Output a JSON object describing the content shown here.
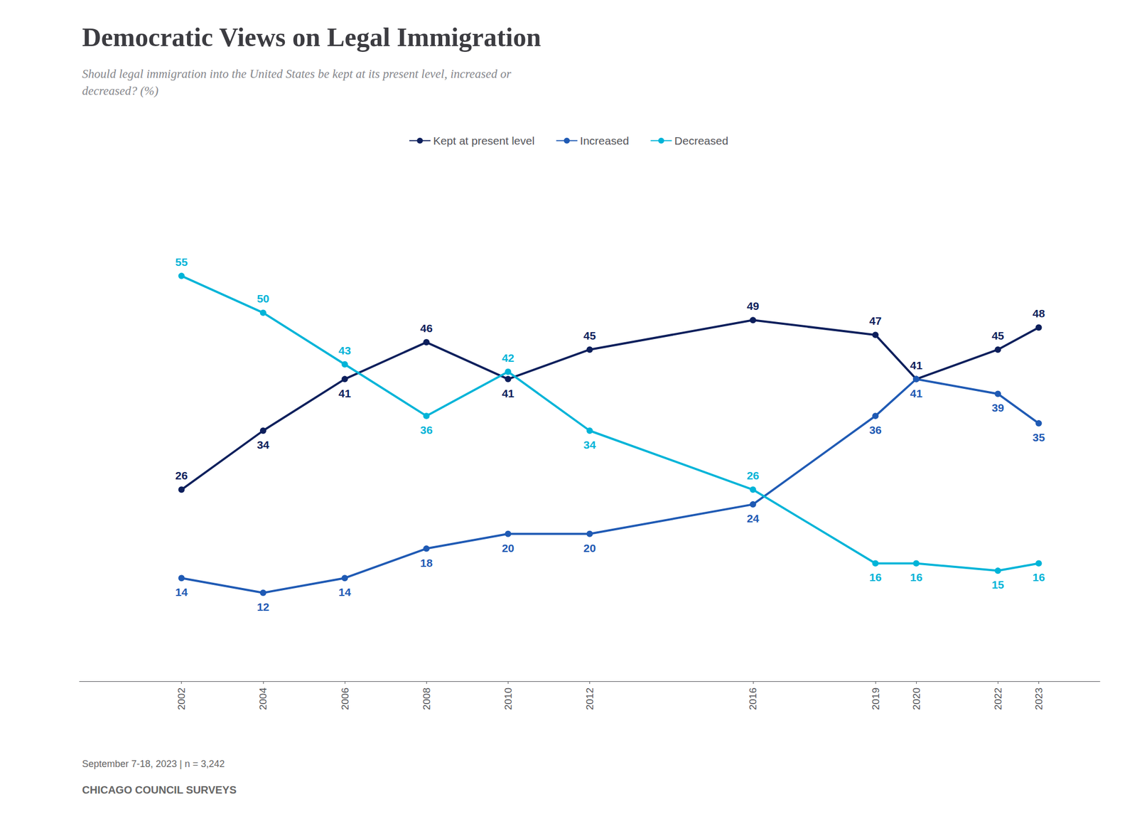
{
  "chart_data": {
    "type": "line",
    "title": "Democratic Views on Legal Immigration",
    "subtitle": "Should legal immigration into the United States be kept at its present level, increased or\ndecreased? (%)",
    "annotations": [
      "September 7-18, 2023 | n = 3,242",
      "CHICAGO COUNCIL SURVEYS"
    ],
    "x": [
      2002,
      2004,
      2006,
      2008,
      2010,
      2012,
      2016,
      2019,
      2020,
      2022,
      2023
    ],
    "series": [
      {
        "name": "Kept at present level",
        "color": "#0d1f5c",
        "values": [
          26,
          34,
          41,
          46,
          41,
          45,
          49,
          47,
          41,
          45,
          48
        ]
      },
      {
        "name": "Increased",
        "color": "#1f5ab4",
        "values": [
          14,
          12,
          14,
          18,
          20,
          20,
          24,
          36,
          41,
          39,
          35
        ]
      },
      {
        "name": "Decreased",
        "color": "#00b4d8",
        "values": [
          55,
          50,
          43,
          36,
          42,
          34,
          26,
          16,
          16,
          15,
          16
        ]
      }
    ],
    "xlim": [
      1999.5,
      2024.5
    ],
    "xticks": [
      2002,
      2004,
      2006,
      2008,
      2010,
      2012,
      2016,
      2019,
      2020,
      2022,
      2023
    ],
    "ylim": [
      0,
      68
    ],
    "tick_labels": "x",
    "grid": false,
    "legend": "top",
    "data_labels": true,
    "marker": "circle"
  }
}
